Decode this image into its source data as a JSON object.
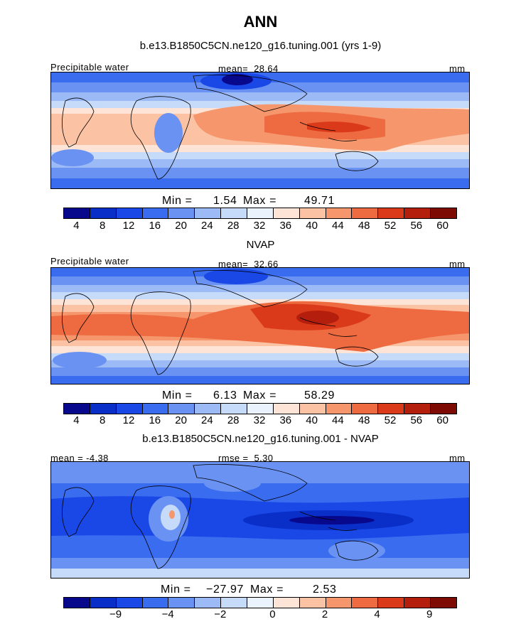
{
  "figure": {
    "title": "ANN"
  },
  "chart_data": [
    {
      "type": "heatmap",
      "title": "b.e13.B1850C5CN.ne120_g16.tuning.001 (yrs 1-9)",
      "variable_label": "Precipitable water",
      "stat_text": "mean=  28.64",
      "units": "mm",
      "mean": 28.64,
      "min": 1.54,
      "max": 49.71,
      "min_label": "Min = ",
      "min_value": "1.54",
      "max_label": "Max = ",
      "max_value": "49.71",
      "colorbar_ticks": [
        "4",
        "8",
        "12",
        "16",
        "20",
        "24",
        "28",
        "32",
        "36",
        "40",
        "44",
        "48",
        "52",
        "56",
        "60"
      ],
      "colorbar_colors": [
        "#08088c",
        "#0a2ec8",
        "#1a48e6",
        "#3a6cf0",
        "#6a92f2",
        "#9cbaf6",
        "#c6dafa",
        "#eaf2fe",
        "#fde4d6",
        "#fbc2a4",
        "#f6966c",
        "#ee6a40",
        "#da3a1a",
        "#b41e0c",
        "#7e0a04"
      ]
    },
    {
      "type": "heatmap",
      "title": "NVAP",
      "variable_label": "Precipitable water",
      "stat_text": "mean=  32.66",
      "units": "mm",
      "mean": 32.66,
      "min": 6.13,
      "max": 58.29,
      "min_label": "Min = ",
      "min_value": "6.13",
      "max_label": "Max = ",
      "max_value": "58.29",
      "colorbar_ticks": [
        "4",
        "8",
        "12",
        "16",
        "20",
        "24",
        "28",
        "32",
        "36",
        "40",
        "44",
        "48",
        "52",
        "56",
        "60"
      ],
      "colorbar_colors": [
        "#08088c",
        "#0a2ec8",
        "#1a48e6",
        "#3a6cf0",
        "#6a92f2",
        "#9cbaf6",
        "#c6dafa",
        "#eaf2fe",
        "#fde4d6",
        "#fbc2a4",
        "#f6966c",
        "#ee6a40",
        "#da3a1a",
        "#b41e0c",
        "#7e0a04"
      ]
    },
    {
      "type": "heatmap",
      "title": "b.e13.B1850C5CN.ne120_g16.tuning.001 - NVAP",
      "stat_left": "mean = -4.38",
      "stat_center": "rmse =  5.30",
      "units": "mm",
      "mean": -4.38,
      "rmse": 5.3,
      "min": -27.97,
      "max": 2.53,
      "min_label": "Min = ",
      "min_value": "−27.97",
      "max_label": "Max = ",
      "max_value": "2.53",
      "colorbar_ticks": [
        "−9",
        "−4",
        "−2",
        "0",
        "2",
        "4",
        "9"
      ],
      "colorbar_colors": [
        "#08088c",
        "#0a2ec8",
        "#1a48e6",
        "#3a6cf0",
        "#6a92f2",
        "#9cbaf6",
        "#c6dafa",
        "#eaf2fe",
        "#fde4d6",
        "#fbc2a4",
        "#f6966c",
        "#ee6a40",
        "#da3a1a",
        "#b41e0c",
        "#7e0a04"
      ]
    }
  ]
}
